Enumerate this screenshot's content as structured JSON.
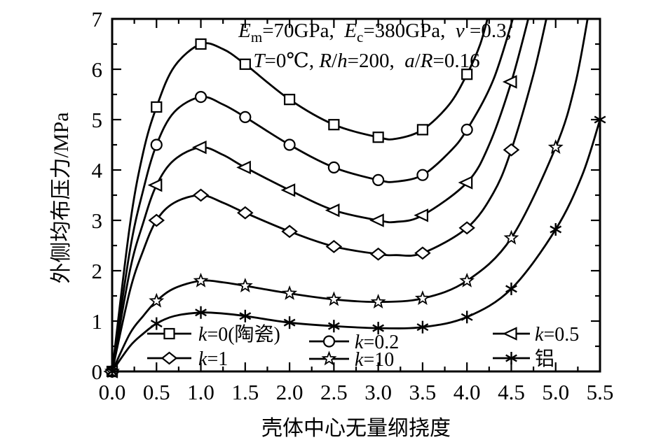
{
  "chart_data": {
    "type": "line",
    "title": "",
    "xlabel": "壳体中心无量纲挠度",
    "ylabel": "外侧均布压力/MPa",
    "xlim": [
      0,
      5.5
    ],
    "ylim": [
      0,
      7
    ],
    "x_tick_labels": [
      "0.0",
      "0.5",
      "1.0",
      "1.5",
      "2.0",
      "2.5",
      "3.0",
      "3.5",
      "4.0",
      "4.5",
      "5.0",
      "5.5"
    ],
    "y_tick_labels": [
      "0",
      "1",
      "2",
      "3",
      "4",
      "5",
      "6",
      "7"
    ],
    "x_major_step": 0.5,
    "x_minor_step": 0.25,
    "y_major_step": 1,
    "y_minor_step": 0.5,
    "grid": false,
    "line_color": "#000000",
    "legend_position": "inside-bottom",
    "annotation": {
      "line1_text": "Em=70GPa,  Ec=380GPa,  ν =0.3,",
      "line2_text": "T=0℃, R/h=200,  a/R=0.16",
      "line1_segments": [
        {
          "t": "E",
          "i": 1
        },
        {
          "t": "m",
          "sub": 1
        },
        {
          "t": "=70GPa,  "
        },
        {
          "t": "E",
          "i": 1
        },
        {
          "t": "c",
          "sub": 1
        },
        {
          "t": "=380GPa,  "
        },
        {
          "t": "ν",
          "i": 1
        },
        {
          "t": " =0.3,"
        }
      ],
      "line2_segments": [
        {
          "t": "T",
          "i": 1
        },
        {
          "t": "=0℃, "
        },
        {
          "t": "R",
          "i": 1
        },
        {
          "t": "/"
        },
        {
          "t": "h",
          "i": 1
        },
        {
          "t": "=200,  "
        },
        {
          "t": "a",
          "i": 1
        },
        {
          "t": "/"
        },
        {
          "t": "R",
          "i": 1
        },
        {
          "t": "=0.16"
        }
      ]
    },
    "series": [
      {
        "id": "k0-ceramic",
        "label": "k=0(陶瓷)",
        "label_segments": [
          {
            "t": "k",
            "i": 1
          },
          {
            "t": "=0(陶瓷)"
          }
        ],
        "marker": "square",
        "points": [
          [
            0,
            0
          ],
          [
            0.5,
            5.25
          ],
          [
            1,
            6.5
          ],
          [
            1.5,
            6.1
          ],
          [
            2,
            5.4
          ],
          [
            2.5,
            4.9
          ],
          [
            3,
            4.65
          ],
          [
            3.5,
            4.8
          ],
          [
            4,
            5.9
          ]
        ],
        "curve": [
          [
            0,
            0
          ],
          [
            0.2,
            2.9
          ],
          [
            0.35,
            4.35
          ],
          [
            0.5,
            5.25
          ],
          [
            0.7,
            6.05
          ],
          [
            1,
            6.5
          ],
          [
            1.25,
            6.4
          ],
          [
            1.5,
            6.1
          ],
          [
            2,
            5.4
          ],
          [
            2.5,
            4.9
          ],
          [
            3,
            4.65
          ],
          [
            3.2,
            4.62
          ],
          [
            3.5,
            4.8
          ],
          [
            3.8,
            5.3
          ],
          [
            4,
            5.9
          ],
          [
            4.15,
            6.5
          ],
          [
            4.26,
            7.2
          ]
        ]
      },
      {
        "id": "k0.2",
        "label": "k=0.2",
        "label_segments": [
          {
            "t": "k",
            "i": 1
          },
          {
            "t": "=0.2"
          }
        ],
        "marker": "circle",
        "points": [
          [
            0,
            0
          ],
          [
            0.5,
            4.5
          ],
          [
            1,
            5.45
          ],
          [
            1.5,
            5.05
          ],
          [
            2,
            4.5
          ],
          [
            2.5,
            4.05
          ],
          [
            3,
            3.8
          ],
          [
            3.5,
            3.9
          ],
          [
            4,
            4.8
          ]
        ],
        "curve": [
          [
            0,
            0
          ],
          [
            0.2,
            2.4
          ],
          [
            0.35,
            3.6
          ],
          [
            0.5,
            4.5
          ],
          [
            0.7,
            5.15
          ],
          [
            1,
            5.45
          ],
          [
            1.25,
            5.3
          ],
          [
            1.5,
            5.05
          ],
          [
            2,
            4.5
          ],
          [
            2.5,
            4.05
          ],
          [
            3,
            3.8
          ],
          [
            3.2,
            3.77
          ],
          [
            3.5,
            3.9
          ],
          [
            3.8,
            4.35
          ],
          [
            4,
            4.8
          ],
          [
            4.3,
            5.8
          ],
          [
            4.55,
            7.2
          ]
        ]
      },
      {
        "id": "k0.5",
        "label": "k=0.5",
        "label_segments": [
          {
            "t": "k",
            "i": 1
          },
          {
            "t": "=0.5"
          }
        ],
        "marker": "triangle-left",
        "points": [
          [
            0,
            0
          ],
          [
            0.5,
            3.7
          ],
          [
            1,
            4.45
          ],
          [
            1.5,
            4.05
          ],
          [
            2,
            3.6
          ],
          [
            2.5,
            3.2
          ],
          [
            3,
            3.0
          ],
          [
            3.5,
            3.1
          ],
          [
            4,
            3.75
          ],
          [
            4.5,
            5.75
          ]
        ],
        "curve": [
          [
            0,
            0
          ],
          [
            0.2,
            2.0
          ],
          [
            0.35,
            2.95
          ],
          [
            0.5,
            3.7
          ],
          [
            0.7,
            4.2
          ],
          [
            1,
            4.45
          ],
          [
            1.25,
            4.3
          ],
          [
            1.5,
            4.05
          ],
          [
            2,
            3.6
          ],
          [
            2.5,
            3.2
          ],
          [
            3,
            3.0
          ],
          [
            3.2,
            2.97
          ],
          [
            3.5,
            3.1
          ],
          [
            4,
            3.75
          ],
          [
            4.25,
            4.5
          ],
          [
            4.5,
            5.75
          ],
          [
            4.72,
            7.2
          ]
        ]
      },
      {
        "id": "k1",
        "label": "k=1",
        "label_segments": [
          {
            "t": "k",
            "i": 1
          },
          {
            "t": "=1"
          }
        ],
        "marker": "diamond",
        "points": [
          [
            0,
            0
          ],
          [
            0.5,
            3.0
          ],
          [
            1,
            3.5
          ],
          [
            1.5,
            3.15
          ],
          [
            2,
            2.78
          ],
          [
            2.5,
            2.48
          ],
          [
            3,
            2.33
          ],
          [
            3.5,
            2.35
          ],
          [
            4,
            2.85
          ],
          [
            4.5,
            4.4
          ]
        ],
        "curve": [
          [
            0,
            0
          ],
          [
            0.2,
            1.6
          ],
          [
            0.35,
            2.4
          ],
          [
            0.5,
            3.0
          ],
          [
            0.7,
            3.35
          ],
          [
            1,
            3.5
          ],
          [
            1.25,
            3.35
          ],
          [
            1.5,
            3.15
          ],
          [
            2,
            2.78
          ],
          [
            2.5,
            2.48
          ],
          [
            3,
            2.33
          ],
          [
            3.2,
            2.31
          ],
          [
            3.5,
            2.35
          ],
          [
            4,
            2.85
          ],
          [
            4.3,
            3.55
          ],
          [
            4.5,
            4.4
          ],
          [
            4.75,
            5.9
          ],
          [
            4.92,
            7.2
          ]
        ]
      },
      {
        "id": "k10",
        "label": "k=10",
        "label_segments": [
          {
            "t": "k",
            "i": 1
          },
          {
            "t": "=10"
          }
        ],
        "marker": "star",
        "points": [
          [
            0,
            0
          ],
          [
            0.5,
            1.4
          ],
          [
            1,
            1.8
          ],
          [
            1.5,
            1.7
          ],
          [
            2,
            1.55
          ],
          [
            2.5,
            1.43
          ],
          [
            3,
            1.38
          ],
          [
            3.5,
            1.45
          ],
          [
            4,
            1.8
          ],
          [
            4.5,
            2.65
          ],
          [
            5,
            4.45
          ]
        ],
        "curve": [
          [
            0,
            0
          ],
          [
            0.2,
            0.75
          ],
          [
            0.35,
            1.1
          ],
          [
            0.5,
            1.4
          ],
          [
            0.7,
            1.65
          ],
          [
            1,
            1.8
          ],
          [
            1.25,
            1.77
          ],
          [
            1.5,
            1.7
          ],
          [
            2,
            1.55
          ],
          [
            2.5,
            1.43
          ],
          [
            3,
            1.38
          ],
          [
            3.5,
            1.45
          ],
          [
            4,
            1.8
          ],
          [
            4.5,
            2.65
          ],
          [
            5,
            4.45
          ],
          [
            5.22,
            5.7
          ],
          [
            5.38,
            7.2
          ]
        ]
      },
      {
        "id": "aluminum",
        "label": "铝",
        "label_segments": [
          {
            "t": "铝"
          }
        ],
        "marker": "asterisk",
        "points": [
          [
            0,
            0
          ],
          [
            0.5,
            0.95
          ],
          [
            1,
            1.17
          ],
          [
            1.5,
            1.1
          ],
          [
            2,
            0.97
          ],
          [
            2.5,
            0.9
          ],
          [
            3,
            0.86
          ],
          [
            3.5,
            0.88
          ],
          [
            4,
            1.08
          ],
          [
            4.5,
            1.64
          ],
          [
            5,
            2.82
          ],
          [
            5.5,
            5.0
          ]
        ],
        "curve": [
          [
            0,
            0
          ],
          [
            0.2,
            0.5
          ],
          [
            0.35,
            0.75
          ],
          [
            0.5,
            0.95
          ],
          [
            0.7,
            1.1
          ],
          [
            1,
            1.17
          ],
          [
            1.25,
            1.15
          ],
          [
            1.5,
            1.1
          ],
          [
            2,
            0.97
          ],
          [
            2.5,
            0.9
          ],
          [
            3,
            0.86
          ],
          [
            3.5,
            0.88
          ],
          [
            4,
            1.08
          ],
          [
            4.5,
            1.64
          ],
          [
            5,
            2.82
          ],
          [
            5.3,
            3.9
          ],
          [
            5.5,
            5.0
          ]
        ]
      }
    ]
  }
}
